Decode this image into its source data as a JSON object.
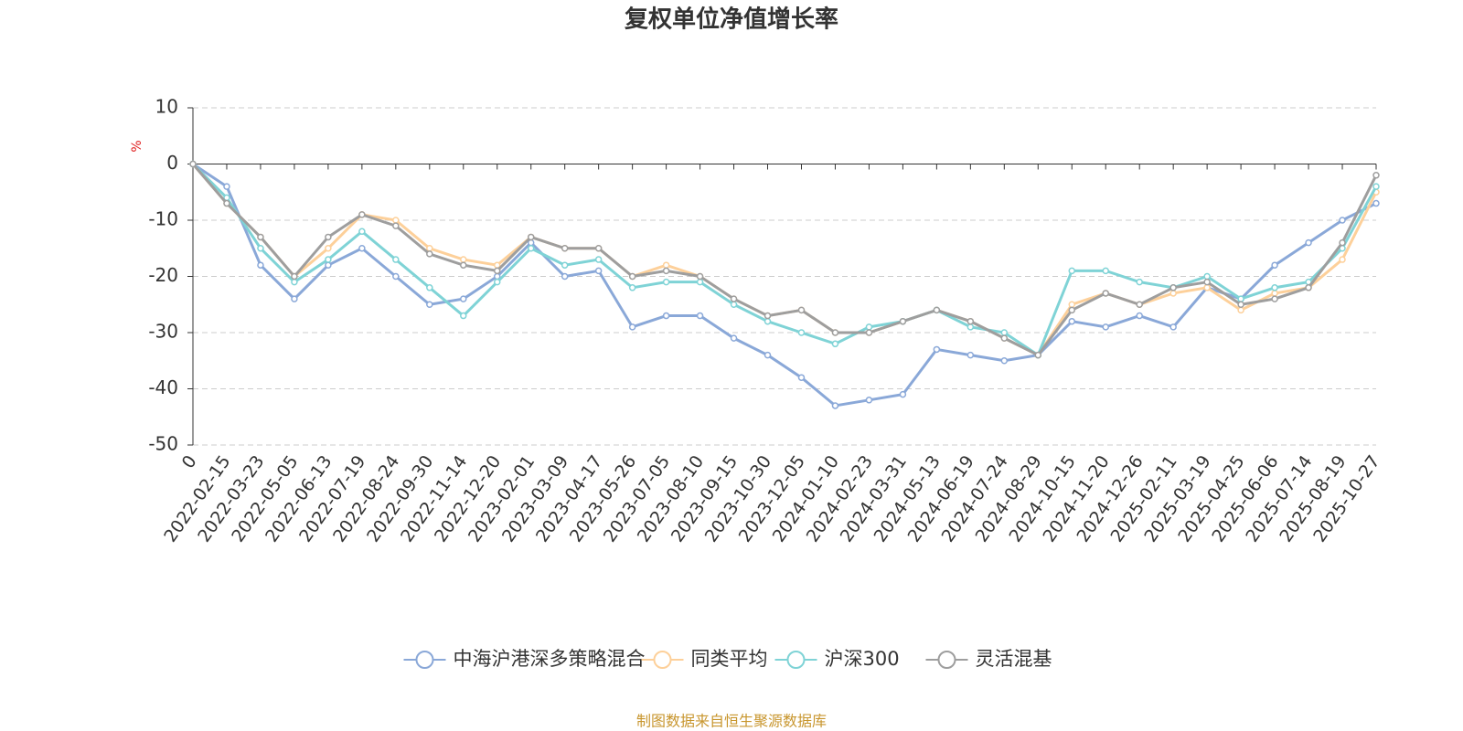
{
  "chart_data": {
    "type": "line",
    "title": "复权单位净值增长率",
    "y_unit": "%",
    "categories": [
      "0",
      "2022-02-15",
      "2022-03-23",
      "2022-05-05",
      "2022-06-13",
      "2022-07-19",
      "2022-08-24",
      "2022-09-30",
      "2022-11-14",
      "2022-12-20",
      "2023-02-01",
      "2023-03-09",
      "2023-04-17",
      "2023-05-26",
      "2023-07-05",
      "2023-08-10",
      "2023-09-15",
      "2023-10-30",
      "2023-12-05",
      "2024-01-10",
      "2024-02-23",
      "2024-03-31",
      "2024-05-13",
      "2024-06-19",
      "2024-07-24",
      "2024-08-29",
      "2024-10-15",
      "2024-11-20",
      "2024-12-26",
      "2025-02-11",
      "2025-03-19",
      "2025-04-25",
      "2025-06-06",
      "2025-07-14",
      "2025-08-19",
      "2025-10-27"
    ],
    "series": [
      {
        "name": "中海沪港深多策略混合",
        "color": "#8aa8d8",
        "values": [
          0,
          -4,
          -18,
          -24,
          -18,
          -15,
          -20,
          -25,
          -24,
          -20,
          -14,
          -20,
          -19,
          -29,
          -27,
          -27,
          -31,
          -34,
          -38,
          -43,
          -42,
          -41,
          -33,
          -34,
          -35,
          -34,
          -28,
          -29,
          -27,
          -29,
          -22,
          -24,
          -18,
          -14,
          -10,
          -7
        ]
      },
      {
        "name": "同类平均",
        "color": "#fdd09a",
        "values": [
          0,
          -7,
          -13,
          -20,
          -15,
          -9,
          -10,
          -15,
          -17,
          -18,
          -13,
          -15,
          -15,
          -20,
          -18,
          -20,
          -24,
          -27,
          -26,
          -30,
          -30,
          -28,
          -26,
          -28,
          -31,
          -34,
          -25,
          -23,
          -25,
          -23,
          -22,
          -26,
          -23,
          -22,
          -17,
          -5
        ]
      },
      {
        "name": "沪深300",
        "color": "#7fd3d6",
        "values": [
          0,
          -6,
          -15,
          -21,
          -17,
          -12,
          -17,
          -22,
          -27,
          -21,
          -15,
          -18,
          -17,
          -22,
          -21,
          -21,
          -25,
          -28,
          -30,
          -32,
          -29,
          -28,
          -26,
          -29,
          -30,
          -34,
          -19,
          -19,
          -21,
          -22,
          -20,
          -24,
          -22,
          -21,
          -15,
          -4
        ]
      },
      {
        "name": "灵活混基",
        "color": "#9e9e9e",
        "values": [
          0,
          -7,
          -13,
          -20,
          -13,
          -9,
          -11,
          -16,
          -18,
          -19,
          -13,
          -15,
          -15,
          -20,
          -19,
          -20,
          -24,
          -27,
          -26,
          -30,
          -30,
          -28,
          -26,
          -28,
          -31,
          -34,
          -26,
          -23,
          -25,
          -22,
          -21,
          -25,
          -24,
          -22,
          -14,
          -2
        ]
      }
    ],
    "ylim": [
      -50,
      10
    ],
    "yticks": [
      -50,
      -40,
      -30,
      -20,
      -10,
      0,
      10
    ],
    "grid": true,
    "legend": "bottom",
    "source": "制图数据来自恒生聚源数据库"
  }
}
